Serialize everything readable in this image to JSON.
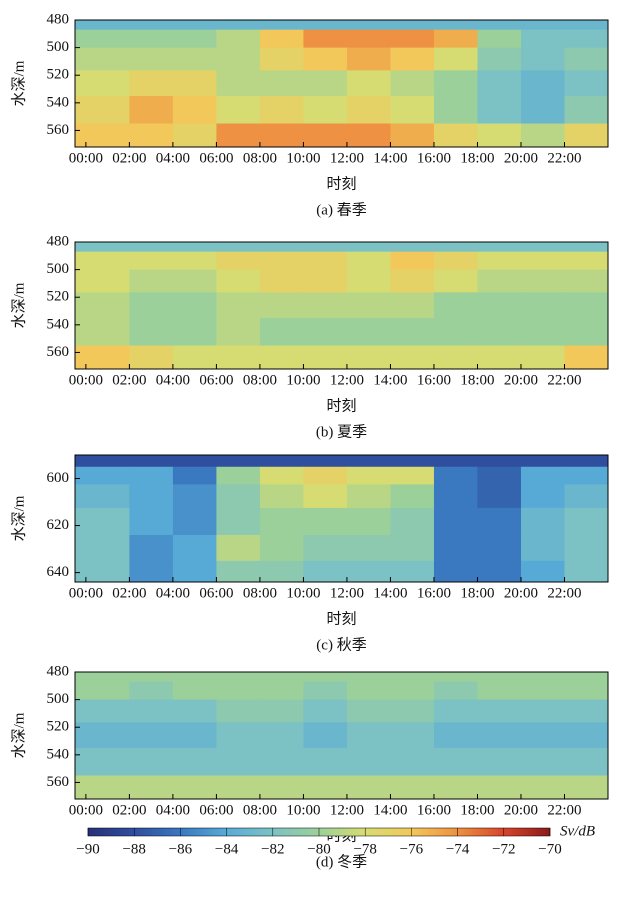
{
  "chart_data": [
    {
      "type": "heatmap",
      "ylabel": "水深/m",
      "xlabel": "时刻",
      "caption": "(a) 春季",
      "xlim": [
        -0.5,
        24
      ],
      "ylim": [
        572,
        480
      ],
      "xticks": [
        {
          "value": 0,
          "label": "00:00"
        },
        {
          "value": 2,
          "label": "02:00"
        },
        {
          "value": 4,
          "label": "04:00"
        },
        {
          "value": 6,
          "label": "06:00"
        },
        {
          "value": 8,
          "label": "08:00"
        },
        {
          "value": 10,
          "label": "10:00"
        },
        {
          "value": 12,
          "label": "12:00"
        },
        {
          "value": 14,
          "label": "14:00"
        },
        {
          "value": 16,
          "label": "16:00"
        },
        {
          "value": 18,
          "label": "18:00"
        },
        {
          "value": 20,
          "label": "20:00"
        },
        {
          "value": 22,
          "label": "22:00"
        }
      ],
      "yticks": [
        480,
        500,
        520,
        540,
        560
      ],
      "x": [
        1,
        3,
        5,
        7,
        9,
        11,
        13,
        15,
        17,
        19,
        21,
        23
      ],
      "y": [
        482,
        492,
        508,
        525,
        545,
        565
      ],
      "z": [
        [
          -83,
          -83,
          -83,
          -83,
          -83,
          -83,
          -83,
          -83,
          -83,
          -83,
          -83,
          -83
        ],
        [
          -80,
          -80,
          -80,
          -79,
          -76,
          -74,
          -74,
          -74,
          -75,
          -80,
          -82,
          -82
        ],
        [
          -79,
          -79,
          -79,
          -79,
          -77,
          -76,
          -75,
          -76,
          -78,
          -81,
          -82,
          -81
        ],
        [
          -78,
          -77,
          -77,
          -79,
          -79,
          -79,
          -78,
          -79,
          -80,
          -82,
          -83,
          -82
        ],
        [
          -77,
          -75,
          -76,
          -78,
          -77,
          -78,
          -77,
          -78,
          -80,
          -82,
          -83,
          -81
        ],
        [
          -76,
          -76,
          -77,
          -74,
          -74,
          -74,
          -74,
          -75,
          -77,
          -78,
          -79,
          -77
        ]
      ]
    },
    {
      "type": "heatmap",
      "ylabel": "水深/m",
      "xlabel": "时刻",
      "caption": "(b) 夏季",
      "xlim": [
        -0.5,
        24
      ],
      "ylim": [
        572,
        480
      ],
      "xticks": [
        {
          "value": 0,
          "label": "00:00"
        },
        {
          "value": 2,
          "label": "02:00"
        },
        {
          "value": 4,
          "label": "04:00"
        },
        {
          "value": 6,
          "label": "06:00"
        },
        {
          "value": 8,
          "label": "08:00"
        },
        {
          "value": 10,
          "label": "10:00"
        },
        {
          "value": 12,
          "label": "12:00"
        },
        {
          "value": 14,
          "label": "14:00"
        },
        {
          "value": 16,
          "label": "16:00"
        },
        {
          "value": 18,
          "label": "18:00"
        },
        {
          "value": 20,
          "label": "20:00"
        },
        {
          "value": 22,
          "label": "22:00"
        }
      ],
      "yticks": [
        480,
        500,
        520,
        540,
        560
      ],
      "x": [
        1,
        3,
        5,
        7,
        9,
        11,
        13,
        15,
        17,
        19,
        21,
        23
      ],
      "y": [
        482,
        492,
        508,
        525,
        545,
        565
      ],
      "z": [
        [
          -82,
          -82,
          -82,
          -82,
          -82,
          -82,
          -82,
          -82,
          -82,
          -82,
          -82,
          -82
        ],
        [
          -78,
          -78,
          -78,
          -77,
          -77,
          -77,
          -78,
          -76,
          -77,
          -78,
          -78,
          -78
        ],
        [
          -78,
          -79,
          -79,
          -78,
          -77,
          -77,
          -78,
          -77,
          -78,
          -79,
          -79,
          -79
        ],
        [
          -79,
          -80,
          -80,
          -79,
          -79,
          -79,
          -79,
          -79,
          -80,
          -80,
          -80,
          -80
        ],
        [
          -79,
          -80,
          -80,
          -79,
          -80,
          -80,
          -80,
          -80,
          -80,
          -80,
          -80,
          -80
        ],
        [
          -76,
          -77,
          -78,
          -78,
          -78,
          -78,
          -78,
          -78,
          -78,
          -78,
          -78,
          -76
        ]
      ]
    },
    {
      "type": "heatmap",
      "ylabel": "水深/m",
      "xlabel": "时刻",
      "caption": "(c) 秋季",
      "xlim": [
        -0.5,
        24
      ],
      "ylim": [
        644,
        590
      ],
      "xticks": [
        {
          "value": 0,
          "label": "00:00"
        },
        {
          "value": 2,
          "label": "02:00"
        },
        {
          "value": 4,
          "label": "04:00"
        },
        {
          "value": 6,
          "label": "06:00"
        },
        {
          "value": 8,
          "label": "08:00"
        },
        {
          "value": 10,
          "label": "10:00"
        },
        {
          "value": 12,
          "label": "12:00"
        },
        {
          "value": 14,
          "label": "14:00"
        },
        {
          "value": 16,
          "label": "16:00"
        },
        {
          "value": 18,
          "label": "18:00"
        },
        {
          "value": 20,
          "label": "20:00"
        },
        {
          "value": 22,
          "label": "22:00"
        }
      ],
      "yticks": [
        600,
        620,
        640
      ],
      "x": [
        1,
        3,
        5,
        7,
        9,
        11,
        13,
        15,
        17,
        19,
        21,
        23
      ],
      "y": [
        592,
        598,
        607,
        618,
        630,
        640
      ],
      "z": [
        [
          -88,
          -88,
          -88,
          -88,
          -88,
          -88,
          -88,
          -88,
          -88,
          -88,
          -88,
          -88
        ],
        [
          -84,
          -84,
          -86,
          -80,
          -78,
          -77,
          -78,
          -78,
          -86,
          -87,
          -84,
          -84
        ],
        [
          -83,
          -84,
          -85,
          -81,
          -79,
          -78,
          -79,
          -80,
          -86,
          -87,
          -84,
          -83
        ],
        [
          -82,
          -84,
          -85,
          -81,
          -80,
          -80,
          -80,
          -81,
          -86,
          -86,
          -83,
          -82
        ],
        [
          -82,
          -85,
          -84,
          -79,
          -80,
          -81,
          -81,
          -81,
          -86,
          -86,
          -83,
          -82
        ],
        [
          -82,
          -85,
          -84,
          -81,
          -81,
          -82,
          -82,
          -82,
          -86,
          -86,
          -84,
          -82
        ]
      ]
    },
    {
      "type": "heatmap",
      "ylabel": "水深/m",
      "xlabel": "时刻",
      "caption": "(d) 冬季",
      "xlim": [
        -0.5,
        24
      ],
      "ylim": [
        572,
        480
      ],
      "xticks": [
        {
          "value": 0,
          "label": "00:00"
        },
        {
          "value": 2,
          "label": "02:00"
        },
        {
          "value": 4,
          "label": "04:00"
        },
        {
          "value": 6,
          "label": "06:00"
        },
        {
          "value": 8,
          "label": "08:00"
        },
        {
          "value": 10,
          "label": "10:00"
        },
        {
          "value": 12,
          "label": "12:00"
        },
        {
          "value": 14,
          "label": "14:00"
        },
        {
          "value": 16,
          "label": "16:00"
        },
        {
          "value": 18,
          "label": "18:00"
        },
        {
          "value": 20,
          "label": "20:00"
        },
        {
          "value": 22,
          "label": "22:00"
        }
      ],
      "yticks": [
        480,
        500,
        520,
        540,
        560
      ],
      "x": [
        1,
        3,
        5,
        7,
        9,
        11,
        13,
        15,
        17,
        19,
        21,
        23
      ],
      "y": [
        482,
        492,
        508,
        525,
        545,
        565
      ],
      "z": [
        [
          -80,
          -80,
          -80,
          -80,
          -80,
          -80,
          -80,
          -80,
          -80,
          -80,
          -80,
          -80
        ],
        [
          -80,
          -81,
          -80,
          -80,
          -80,
          -81,
          -80,
          -80,
          -81,
          -80,
          -80,
          -80
        ],
        [
          -82,
          -82,
          -82,
          -81,
          -81,
          -82,
          -81,
          -81,
          -82,
          -82,
          -82,
          -82
        ],
        [
          -83,
          -83,
          -83,
          -82,
          -82,
          -83,
          -82,
          -82,
          -83,
          -83,
          -83,
          -83
        ],
        [
          -82,
          -82,
          -82,
          -82,
          -82,
          -82,
          -82,
          -82,
          -82,
          -82,
          -82,
          -82
        ],
        [
          -79,
          -79,
          -79,
          -79,
          -79,
          -79,
          -79,
          -79,
          -79,
          -79,
          -79,
          -79
        ]
      ]
    }
  ],
  "colorbar": {
    "label": "Sv/dB",
    "lim": [
      -90,
      -70
    ],
    "ticks": [
      {
        "value": -90,
        "label": "−90"
      },
      {
        "value": -88,
        "label": "−88"
      },
      {
        "value": -86,
        "label": "−86"
      },
      {
        "value": -84,
        "label": "−84"
      },
      {
        "value": -82,
        "label": "−82"
      },
      {
        "value": -80,
        "label": "−80"
      },
      {
        "value": -78,
        "label": "−78"
      },
      {
        "value": -76,
        "label": "−76"
      },
      {
        "value": -74,
        "label": "−74"
      },
      {
        "value": -72,
        "label": "−72"
      },
      {
        "value": -70,
        "label": "−70"
      }
    ],
    "colors": [
      "#27307a",
      "#2f4f9e",
      "#3a78c0",
      "#58aad6",
      "#7cc2c4",
      "#9cd09a",
      "#d6dc72",
      "#f2c85a",
      "#ee9142",
      "#d8452c",
      "#8b1a1a"
    ]
  }
}
